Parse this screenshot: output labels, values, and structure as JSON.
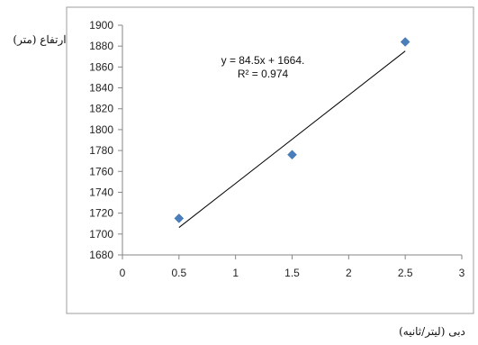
{
  "chart_data": {
    "type": "scatter",
    "title": "",
    "xlabel": "دبی (لیتر/ثانیه)",
    "ylabel": "ارتفاع (متر)",
    "xlim": [
      0,
      3
    ],
    "ylim": [
      1680,
      1900
    ],
    "xticks": [
      "0",
      "0.5",
      "1",
      "1.5",
      "2",
      "2.5",
      "3"
    ],
    "yticks": [
      "1680",
      "1700",
      "1720",
      "1740",
      "1760",
      "1780",
      "1800",
      "1820",
      "1840",
      "1860",
      "1880",
      "1900"
    ],
    "grid": false,
    "legend": "none",
    "series": [
      {
        "x": [
          0.5,
          1.5,
          2.5
        ],
        "y": [
          1715,
          1776,
          1884
        ]
      }
    ],
    "trendline": {
      "type": "linear",
      "slope": 84.5,
      "intercept": 1664,
      "x_range": [
        0.5,
        2.5
      ],
      "equation_text": "y = 84.5x + 1664.",
      "r2_text": "R² = 0.974"
    },
    "colors": {
      "marker": "#4a7ebb",
      "line": "#000000",
      "axis": "#868686"
    }
  }
}
